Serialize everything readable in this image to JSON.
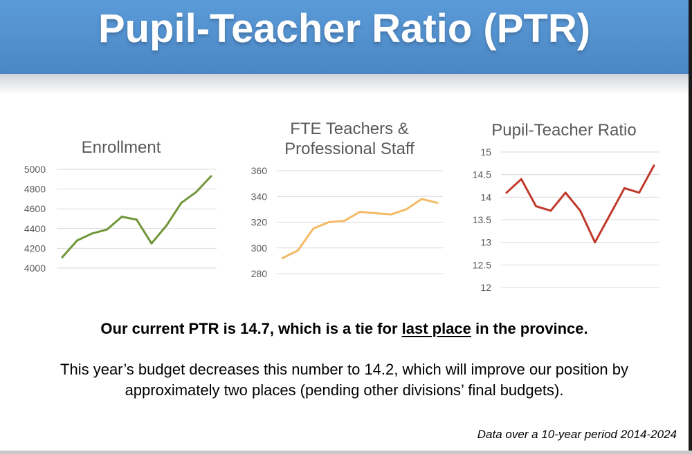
{
  "slide": {
    "title": "Pupil-Teacher Ratio (PTR)",
    "headline_before": "Our current PTR is 14.7, which is a tie for ",
    "headline_emphasis": "last place",
    "headline_after": " in the province.",
    "body": "This year’s budget decreases this number to 14.2, which will improve our position by approximately two places (pending other divisions’ final budgets).",
    "footnote": "Data over a 10-year period 2014-2024",
    "header_color": "#5b9bd8"
  },
  "chart_data": [
    {
      "type": "line",
      "title": "Enrollment",
      "color": "#70963a",
      "ylim": [
        4000,
        5000
      ],
      "yticks": [
        "4000",
        "4200",
        "4400",
        "4600",
        "4800",
        "5000"
      ],
      "grid": true,
      "values": [
        4110,
        4280,
        4350,
        4390,
        4520,
        4490,
        4250,
        4430,
        4660,
        4770,
        4930
      ]
    },
    {
      "type": "line",
      "title": "FTE Teachers & Professional Staff",
      "color": "#f2bb66",
      "ylim": [
        280,
        360
      ],
      "yticks": [
        "280",
        "300",
        "320",
        "340",
        "360"
      ],
      "grid": true,
      "values": [
        292,
        298,
        315,
        320,
        321,
        328,
        327,
        326,
        330,
        338,
        335
      ]
    },
    {
      "type": "line",
      "title": "Pupil-Teacher Ratio",
      "color": "#c0392b",
      "ylim": [
        12,
        15
      ],
      "yticks": [
        "12",
        "12.5",
        "13",
        "13.5",
        "14",
        "14.5",
        "15"
      ],
      "grid": true,
      "values": [
        14.1,
        14.4,
        13.8,
        13.7,
        14.1,
        13.7,
        13.0,
        13.6,
        14.2,
        14.1,
        14.7
      ]
    }
  ]
}
